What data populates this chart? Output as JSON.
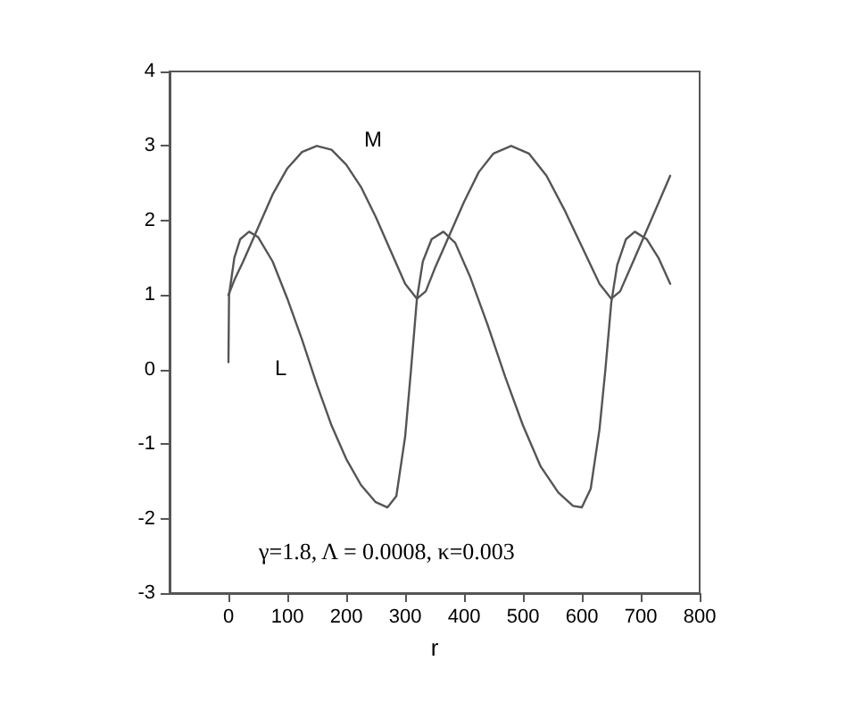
{
  "chart_data": {
    "type": "line",
    "xlabel": "r",
    "xlim": [
      -100,
      800
    ],
    "xticks": [
      0,
      100,
      200,
      300,
      400,
      500,
      600,
      700,
      800
    ],
    "ylim": [
      -3,
      4
    ],
    "yticks": [
      -3,
      -2,
      -1,
      0,
      1,
      2,
      3,
      4
    ],
    "marker": "none",
    "line_style": "solid",
    "annotations": [
      "γ=1.8, Λ = 0.0008, κ=0.003"
    ],
    "series": [
      {
        "name": "M",
        "color": "#555555",
        "x": [
          0,
          10,
          25,
          50,
          75,
          100,
          125,
          150,
          175,
          200,
          225,
          250,
          275,
          300,
          320,
          335,
          350,
          375,
          400,
          425,
          450,
          480,
          510,
          540,
          570,
          600,
          630,
          650,
          665,
          690,
          720,
          750
        ],
        "values": [
          1,
          1.2,
          1.45,
          1.9,
          2.35,
          2.7,
          2.92,
          3.0,
          2.95,
          2.75,
          2.45,
          2.05,
          1.6,
          1.15,
          0.95,
          1.05,
          1.35,
          1.8,
          2.25,
          2.65,
          2.9,
          3.0,
          2.9,
          2.6,
          2.15,
          1.65,
          1.15,
          0.95,
          1.05,
          1.5,
          2.05,
          2.6
        ]
      },
      {
        "name": "L",
        "color": "#555555",
        "x": [
          0,
          1,
          10,
          20,
          35,
          50,
          75,
          100,
          125,
          150,
          175,
          200,
          225,
          250,
          270,
          285,
          300,
          310,
          320,
          330,
          345,
          365,
          385,
          410,
          440,
          470,
          500,
          530,
          560,
          585,
          600,
          615,
          630,
          640,
          650,
          660,
          675,
          690,
          710,
          730,
          750
        ],
        "values": [
          0.1,
          1,
          1.5,
          1.75,
          1.85,
          1.78,
          1.45,
          0.95,
          0.4,
          -0.2,
          -0.75,
          -1.2,
          -1.55,
          -1.78,
          -1.85,
          -1.7,
          -0.9,
          0,
          0.95,
          1.45,
          1.75,
          1.85,
          1.7,
          1.25,
          0.6,
          -0.1,
          -0.75,
          -1.3,
          -1.65,
          -1.83,
          -1.85,
          -1.6,
          -0.8,
          0,
          0.9,
          1.4,
          1.75,
          1.85,
          1.75,
          1.5,
          1.15
        ]
      }
    ]
  }
}
